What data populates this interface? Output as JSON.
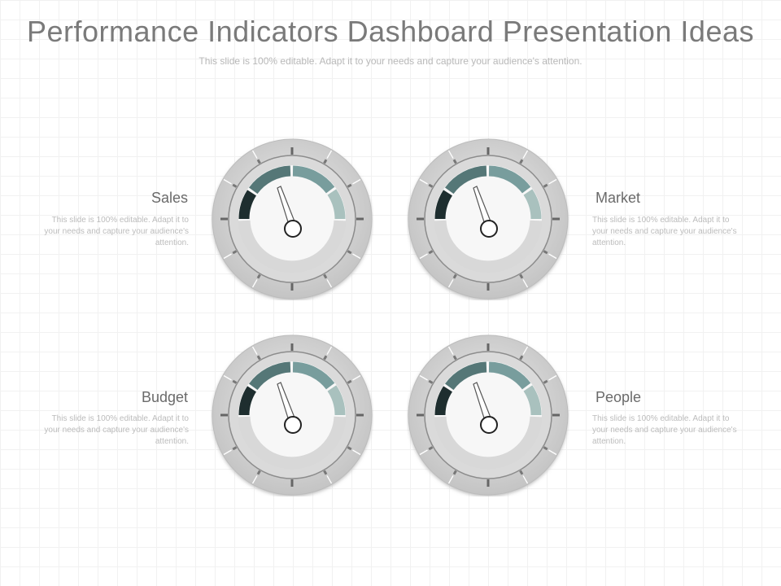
{
  "slide": {
    "title": "Performance Indicators Dashboard Presentation Ideas",
    "subtitle": "This slide is 100% editable. Adapt it to your needs and capture your audience's attention."
  },
  "indicators": [
    {
      "label": "Sales",
      "description": "This slide is 100% editable. Adapt it to your needs and capture your audience's attention."
    },
    {
      "label": "Market",
      "description": "This slide is 100% editable. Adapt it to your needs and capture your audience's attention."
    },
    {
      "label": "Budget",
      "description": "This slide is 100% editable. Adapt it to your needs and capture your audience's attention."
    },
    {
      "label": "People",
      "description": "This slide is 100% editable. Adapt it to your needs and capture your audience's attention."
    }
  ],
  "colors": {
    "segment_dark": "#1e2e2f",
    "segment_mid": "#557777",
    "segment_teal": "#789d9d",
    "segment_light": "#a9c1be",
    "bezel": "#cfcfcf",
    "face": "#d8d8d8"
  }
}
